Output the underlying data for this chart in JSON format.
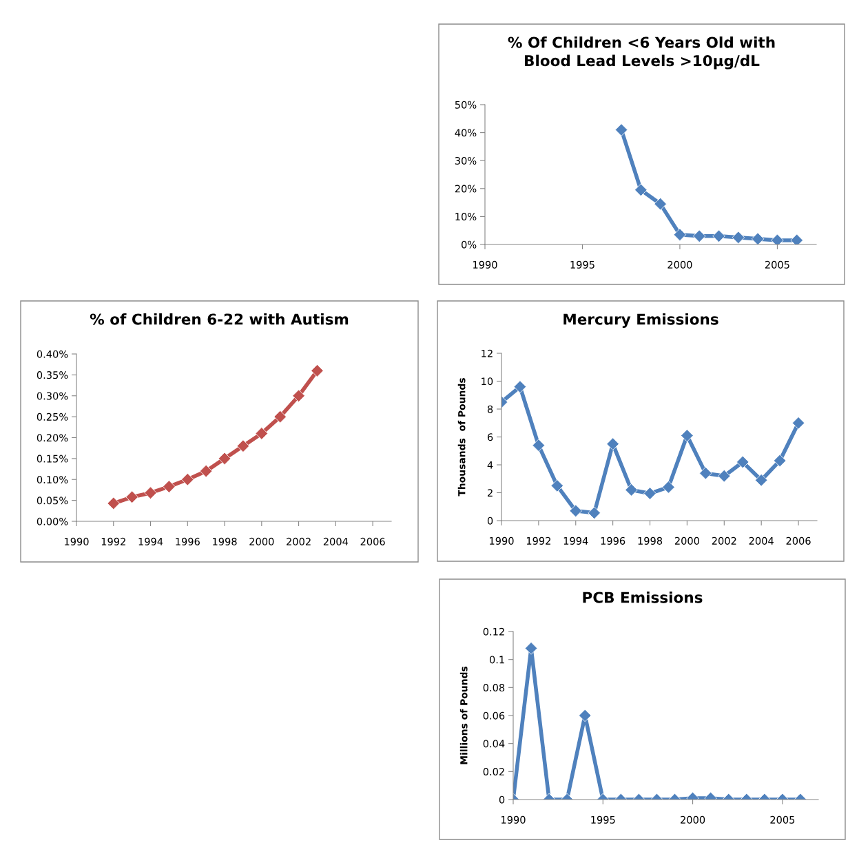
{
  "chart_data": [
    {
      "type": "line",
      "title": "% Of Children <6 Years Old with\nBlood Lead Levels >10µg/dL",
      "x": [
        1997,
        1998,
        1999,
        2000,
        2001,
        2002,
        2003,
        2004,
        2005,
        2006
      ],
      "series": [
        {
          "color": "#4f81bd",
          "values": [
            41,
            19.5,
            14.5,
            3.5,
            3,
            3,
            2.5,
            2,
            1.5,
            1.5
          ]
        }
      ],
      "xlim": [
        1990,
        2007
      ],
      "xticks": [
        1990,
        1995,
        2000,
        2005
      ],
      "ylim": [
        0,
        50
      ],
      "yticks": [
        {
          "value": 0,
          "label": "0%"
        },
        {
          "value": 10,
          "label": "10%"
        },
        {
          "value": 20,
          "label": "20%"
        },
        {
          "value": 30,
          "label": "30%"
        },
        {
          "value": 40,
          "label": "40%"
        },
        {
          "value": 50,
          "label": "50%"
        }
      ],
      "marker": "diamond",
      "line_style": "solid",
      "grid": false,
      "legend": false
    },
    {
      "type": "line",
      "title": "% of Children 6-22 with Autism",
      "x": [
        1992,
        1993,
        1994,
        1995,
        1996,
        1997,
        1998,
        1999,
        2000,
        2001,
        2002,
        2003
      ],
      "series": [
        {
          "color": "#c0504d",
          "values": [
            0.043,
            0.058,
            0.068,
            0.083,
            0.1,
            0.12,
            0.15,
            0.18,
            0.21,
            0.25,
            0.3,
            0.36
          ]
        }
      ],
      "xlim": [
        1990,
        2007
      ],
      "xticks": [
        1990,
        1992,
        1994,
        1996,
        1998,
        2000,
        2002,
        2004,
        2006
      ],
      "ylim": [
        0,
        0.4
      ],
      "yticks": [
        {
          "value": 0,
          "label": "0.00%"
        },
        {
          "value": 0.05,
          "label": "0.05%"
        },
        {
          "value": 0.1,
          "label": "0.10%"
        },
        {
          "value": 0.15,
          "label": "0.15%"
        },
        {
          "value": 0.2,
          "label": "0.20%"
        },
        {
          "value": 0.25,
          "label": "0.25%"
        },
        {
          "value": 0.3,
          "label": "0.30%"
        },
        {
          "value": 0.35,
          "label": "0.35%"
        },
        {
          "value": 0.4,
          "label": "0.40%"
        }
      ],
      "marker": "diamond",
      "line_style": "solid",
      "grid": false,
      "legend": false
    },
    {
      "type": "line",
      "title": "Mercury Emissions",
      "ylabel": "Thousands  of Pounds",
      "x": [
        1990,
        1991,
        1992,
        1993,
        1994,
        1995,
        1996,
        1997,
        1998,
        1999,
        2000,
        2001,
        2002,
        2003,
        2004,
        2005,
        2006
      ],
      "series": [
        {
          "color": "#4f81bd",
          "values": [
            8.5,
            9.6,
            5.4,
            2.5,
            0.7,
            0.55,
            5.5,
            2.2,
            1.95,
            2.4,
            6.1,
            3.4,
            3.2,
            4.2,
            2.9,
            4.3,
            7.0
          ]
        }
      ],
      "xlim": [
        1990,
        2007
      ],
      "xticks": [
        1990,
        1992,
        1994,
        1996,
        1998,
        2000,
        2002,
        2004,
        2006
      ],
      "ylim": [
        0,
        12
      ],
      "yticks": [
        0,
        2,
        4,
        6,
        8,
        10,
        12
      ],
      "marker": "diamond",
      "line_style": "solid",
      "grid": false,
      "legend": false
    },
    {
      "type": "line",
      "title": "PCB Emissions",
      "ylabel": "Millions of Pounds",
      "x": [
        1990,
        1991,
        1992,
        1993,
        1994,
        1995,
        1996,
        1997,
        1998,
        1999,
        2000,
        2001,
        2002,
        2003,
        2004,
        2005,
        2006
      ],
      "series": [
        {
          "color": "#4f81bd",
          "values": [
            0,
            0.108,
            0,
            0,
            0.06,
            0,
            0,
            0,
            0,
            0,
            0.001,
            0.001,
            0,
            0,
            0,
            0,
            0
          ]
        }
      ],
      "xlim": [
        1990,
        2007
      ],
      "xticks": [
        1990,
        1995,
        2000,
        2005
      ],
      "ylim": [
        0,
        0.12
      ],
      "yticks": [
        0,
        0.02,
        0.04,
        0.06,
        0.08,
        0.1,
        0.12
      ],
      "marker": "diamond",
      "line_style": "solid",
      "grid": false,
      "legend": false
    }
  ]
}
